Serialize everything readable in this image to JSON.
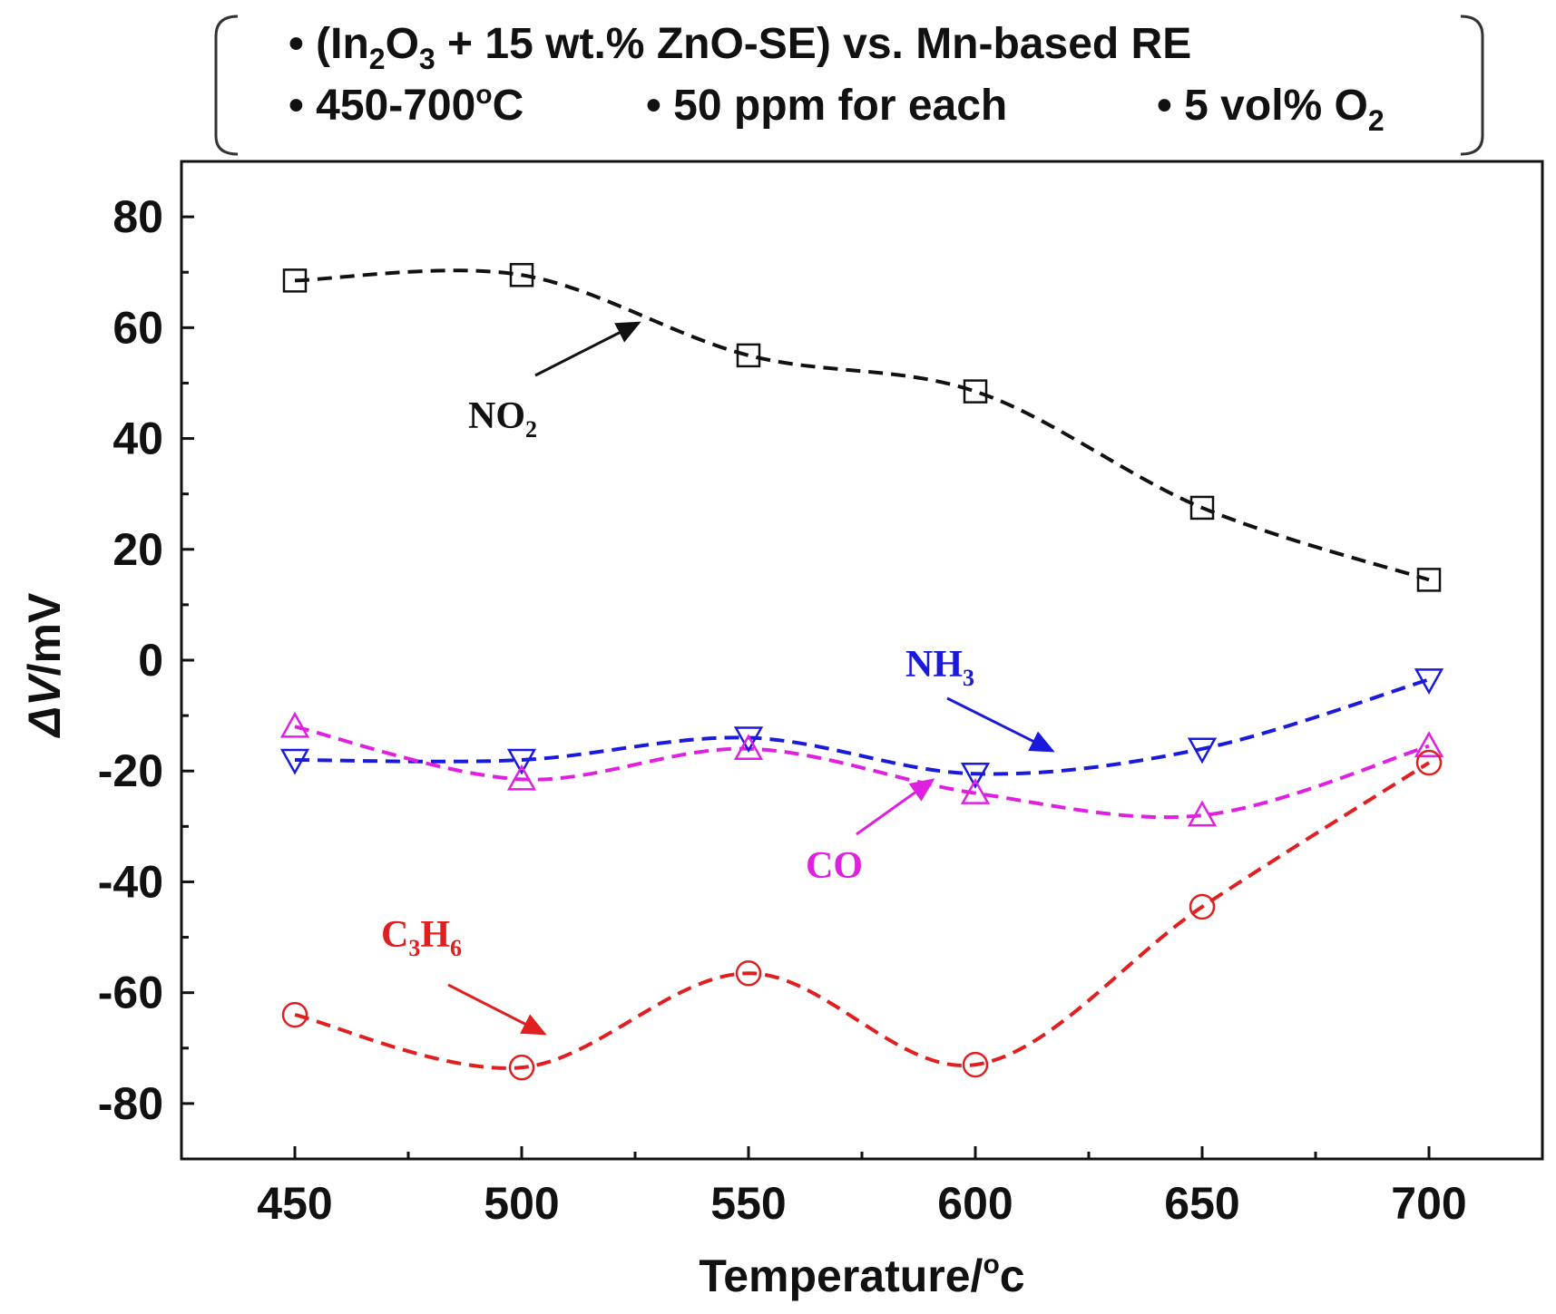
{
  "header": {
    "line1": {
      "text": "• (In",
      "sub1": "2",
      "mid1": "O",
      "sub2": "3",
      "rest": " + 15 wt.% ZnO-SE) vs. Mn-based RE"
    },
    "line2": {
      "item1": "• 450-700",
      "item1_sup": "o",
      "item1_end": "C",
      "item2": "• 50 ppm for each",
      "item3": "• 5 vol% O",
      "item3_sub": "2"
    }
  },
  "chart_data": {
    "type": "line",
    "x": [
      450,
      500,
      550,
      600,
      650,
      700
    ],
    "xlabel": "Temperature/",
    "xlabel_sup": "o",
    "xlabel_end": "c",
    "ylabel_italic": "ΔV",
    "ylabel_rest": "/mV",
    "xlim": [
      425,
      725
    ],
    "ylim": [
      -90,
      90
    ],
    "xticks": [
      450,
      500,
      550,
      600,
      650,
      700
    ],
    "yticks": [
      80,
      60,
      40,
      20,
      0,
      -20,
      -40,
      -60,
      -80
    ],
    "grid": false,
    "series": [
      {
        "name": "NO",
        "name_sub": "2",
        "color": "#111111",
        "marker": "square",
        "values": [
          68.5,
          69.5,
          55,
          48.5,
          27.5,
          14.5
        ]
      },
      {
        "name": "NH",
        "name_sub": "3",
        "color": "#1a1adb",
        "marker": "triangle-down",
        "values": [
          -18,
          -18,
          -14,
          -20.5,
          -16,
          -3.5
        ]
      },
      {
        "name": "CO",
        "name_sub": "",
        "color": "#e020e0",
        "marker": "triangle-up",
        "values": [
          -12,
          -21.5,
          -16,
          -24,
          -28,
          -15.5
        ]
      },
      {
        "name": "C",
        "name_sub": "3",
        "name_mid": "H",
        "name_sub2": "6",
        "color": "#e02020",
        "marker": "circle",
        "values": [
          -64,
          -73.5,
          -56.5,
          -73,
          -44.5,
          -18.5
        ]
      }
    ]
  }
}
